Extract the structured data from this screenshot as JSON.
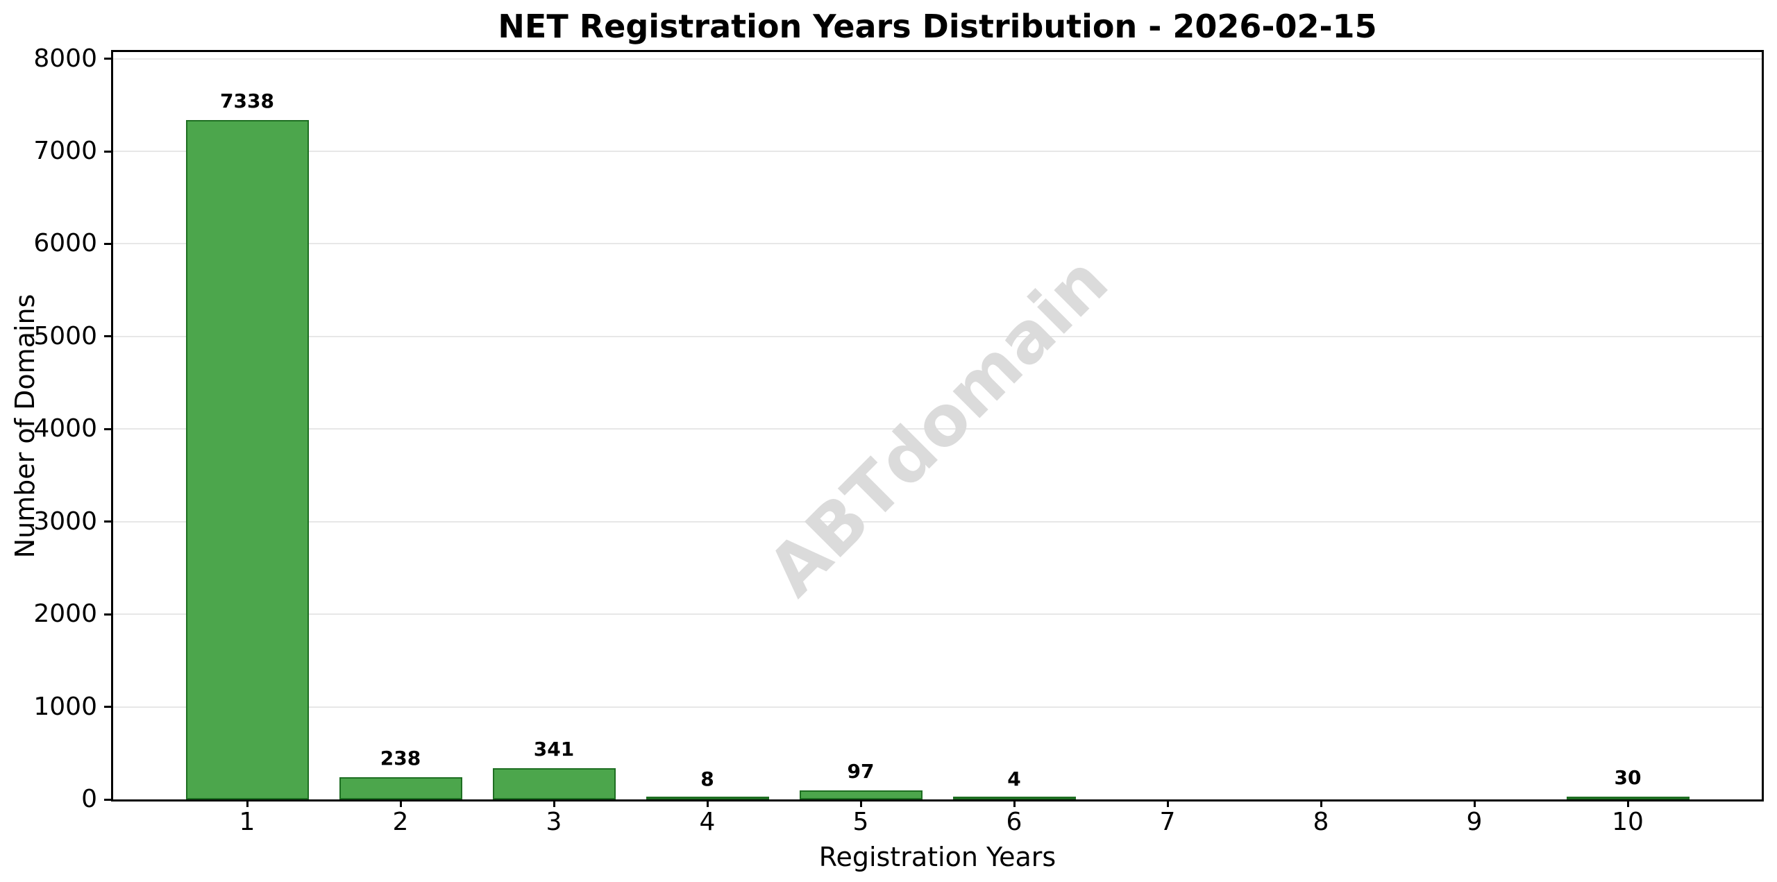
{
  "chart_data": {
    "type": "bar",
    "title": "NET Registration Years Distribution - 2026-02-15",
    "xlabel": "Registration Years",
    "ylabel": "Number of Domains",
    "categories": [
      "1",
      "2",
      "3",
      "4",
      "5",
      "6",
      "7",
      "8",
      "9",
      "10"
    ],
    "values": [
      7338,
      238,
      341,
      8,
      97,
      4,
      0,
      0,
      0,
      30
    ],
    "bar_labels": [
      "7338",
      "238",
      "341",
      "8",
      "97",
      "4",
      "",
      "",
      "",
      "30"
    ],
    "ylim": [
      0,
      8072
    ],
    "yticks": [
      0,
      1000,
      2000,
      3000,
      4000,
      5000,
      6000,
      7000,
      8000
    ],
    "grid": "y",
    "legend": "none",
    "colors": {
      "bar_fill": "#4CA64C",
      "bar_edge": "#1E6E22",
      "grid_line": "#E7E7E7",
      "axis": "#000000",
      "watermark": "#DBDBDB"
    },
    "watermark": {
      "text": "ABTdomain",
      "rotation_deg": -45
    }
  }
}
